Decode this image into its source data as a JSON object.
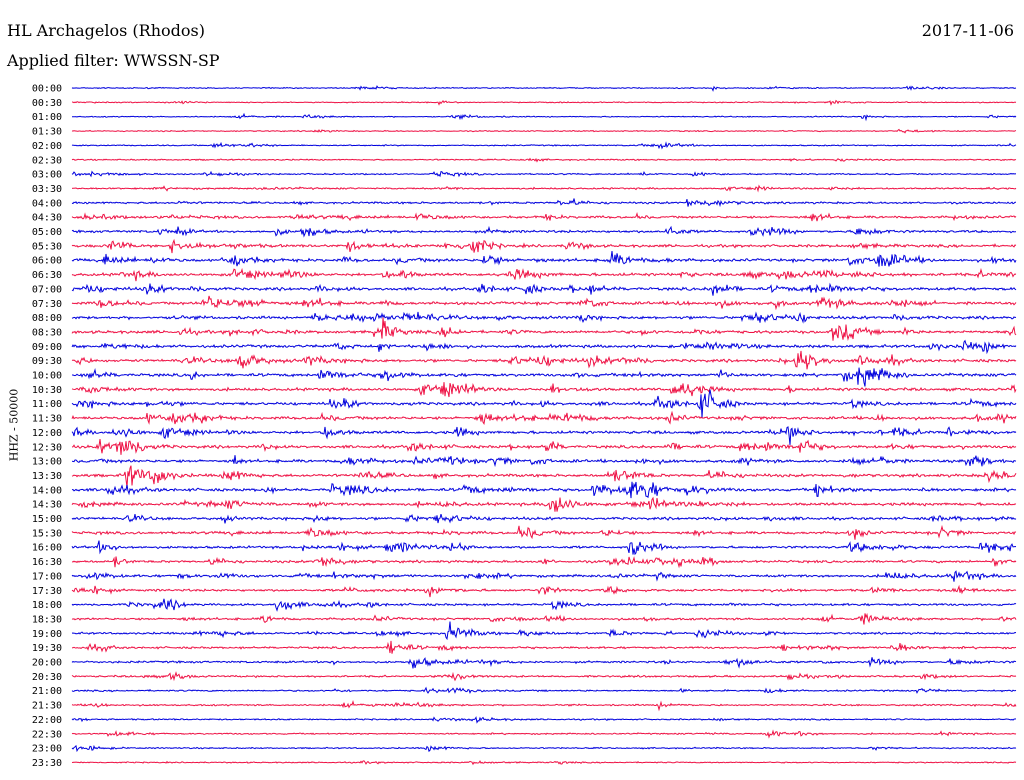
{
  "header": {
    "station": "HL Archagelos (Rhodos)",
    "date": "2017-11-06",
    "filter": "Applied filter: WWSSN-SP"
  },
  "scale_label": "HHZ - 50000",
  "colors": {
    "even": "#0000dd",
    "odd": "#ee1144",
    "text": "#000000"
  },
  "chart_data": {
    "type": "line",
    "title": "HL Archagelos (Rhodos)",
    "subtitle": "Applied filter: WWSSN-SP",
    "ylabel": "HHZ - 50000",
    "tick_labels": [
      "00:00",
      "00:30",
      "01:00",
      "01:30",
      "02:00",
      "02:30",
      "03:00",
      "03:30",
      "04:00",
      "04:30",
      "05:00",
      "05:30",
      "06:00",
      "06:30",
      "07:00",
      "07:30",
      "08:00",
      "08:30",
      "09:00",
      "09:30",
      "10:00",
      "10:30",
      "11:00",
      "11:30",
      "12:00",
      "12:30",
      "13:00",
      "13:30",
      "14:00",
      "14:30",
      "15:00",
      "15:30",
      "16:00",
      "16:30",
      "17:00",
      "17:30",
      "18:00",
      "18:30",
      "19:00",
      "19:30",
      "20:00",
      "20:30",
      "21:00",
      "21:30",
      "22:00",
      "22:30",
      "23:00",
      "23:30"
    ],
    "activity": [
      0.15,
      0.15,
      0.15,
      0.15,
      0.2,
      0.25,
      0.3,
      0.4,
      0.6,
      0.8,
      0.8,
      0.9,
      1.0,
      1.0,
      1.0,
      1.0,
      1.0,
      1.0,
      1.0,
      1.0,
      1.0,
      1.0,
      1.0,
      1.0,
      1.0,
      1.0,
      1.0,
      1.0,
      1.0,
      1.0,
      0.9,
      0.9,
      0.8,
      0.8,
      0.8,
      0.7,
      0.7,
      0.7,
      0.6,
      0.6,
      0.6,
      0.5,
      0.4,
      0.4,
      0.3,
      0.3,
      0.25,
      0.2
    ],
    "grid": false,
    "legend": "none"
  }
}
